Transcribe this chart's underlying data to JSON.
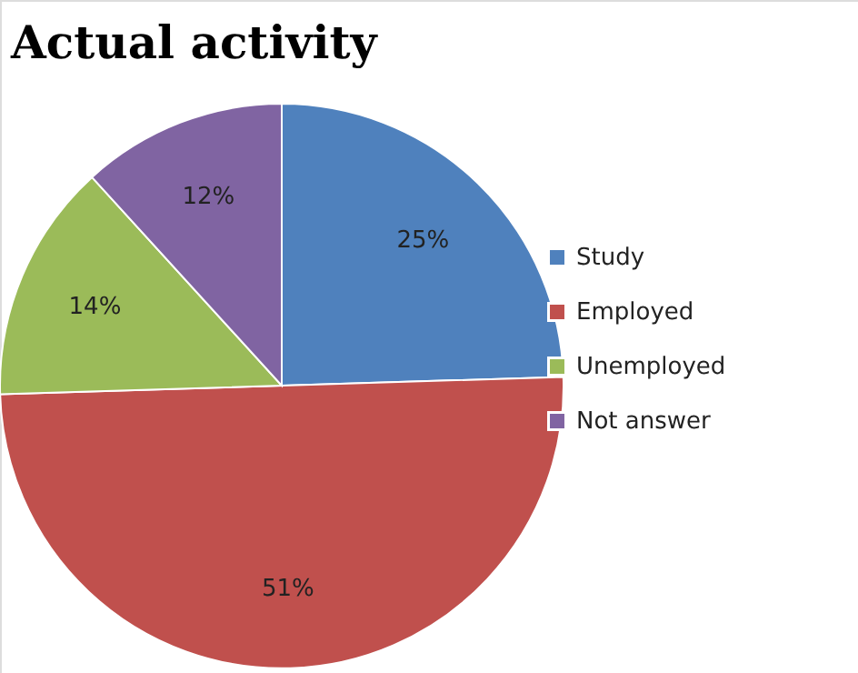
{
  "chart_data": {
    "type": "pie",
    "title": "Actual activity",
    "categories": [
      "Study",
      "Employed",
      "Unemployed",
      "Not answer"
    ],
    "values": [
      25,
      51,
      14,
      12
    ],
    "colors": [
      "#4f81bd",
      "#c0504d",
      "#9bbb59",
      "#8064a2"
    ],
    "value_labels": [
      "25%",
      "51%",
      "14%",
      "12%"
    ],
    "legend": "right"
  }
}
